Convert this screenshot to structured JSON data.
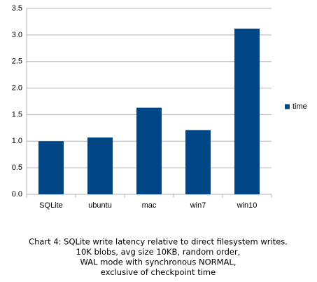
{
  "chart_data": {
    "type": "bar",
    "categories": [
      "SQLite",
      "ubuntu",
      "mac",
      "win7",
      "win10"
    ],
    "series": [
      {
        "name": "time",
        "color": "#004586",
        "values": [
          1.0,
          1.07,
          1.63,
          1.21,
          3.12
        ]
      }
    ],
    "ylim": [
      0,
      3.5
    ],
    "yticks": [
      {
        "value": 0,
        "label": "0.0"
      },
      0.5,
      {
        "value": 1,
        "label": "1.0"
      },
      1.5,
      {
        "value": 2,
        "label": "2.0"
      },
      2.5,
      {
        "value": 3,
        "label": "3.0"
      },
      3.5
    ],
    "grid": true,
    "legend": "right",
    "caption": [
      "Chart 4: SQLite write latency relative to direct filesystem writes.",
      "10K blobs, avg size 10KB, random order,",
      "WAL mode with synchronous NORMAL,",
      "exclusive of checkpoint time"
    ]
  }
}
